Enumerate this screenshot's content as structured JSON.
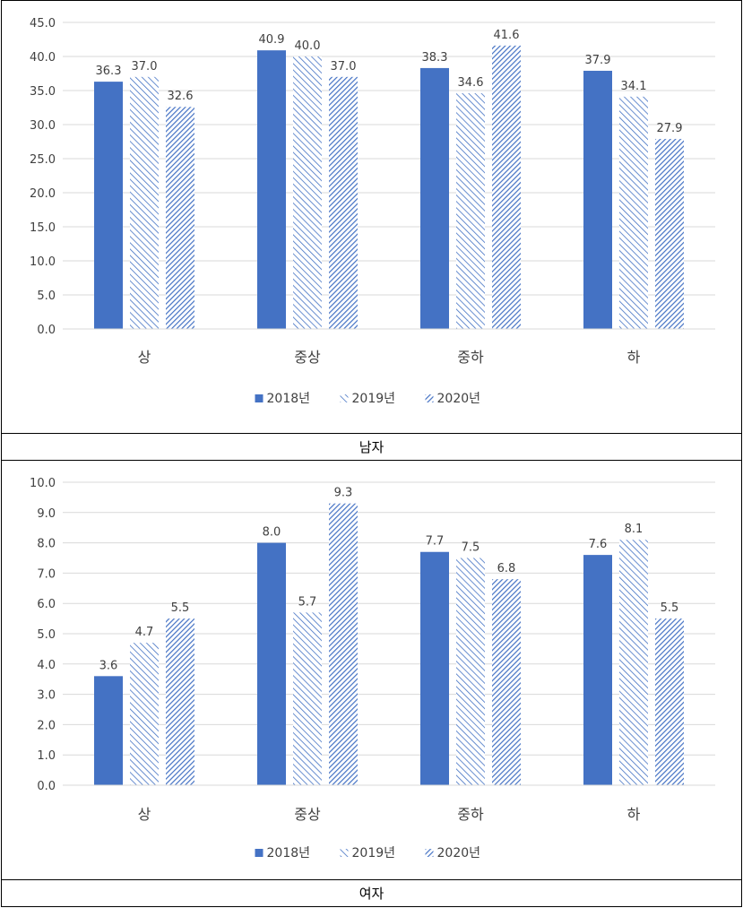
{
  "chart_data": [
    {
      "type": "bar",
      "caption": "남자",
      "categories": [
        "상",
        "중상",
        "중하",
        "하"
      ],
      "series": [
        {
          "name": "2018년",
          "values": [
            36.3,
            40.9,
            38.3,
            37.9
          ],
          "color": "#4472C4",
          "pattern": "solid"
        },
        {
          "name": "2019년",
          "values": [
            37.0,
            40.0,
            34.6,
            34.1
          ],
          "color": "#4472C4",
          "pattern": "light-diagonal"
        },
        {
          "name": "2020년",
          "values": [
            32.6,
            37.0,
            41.6,
            27.9
          ],
          "color": "#4472C4",
          "pattern": "dense-diagonal"
        }
      ],
      "ylim": [
        0,
        45
      ],
      "yticks": [
        "0.0",
        "5.0",
        "10.0",
        "15.0",
        "20.0",
        "25.0",
        "30.0",
        "35.0",
        "40.0",
        "45.0"
      ],
      "ystep": 5,
      "grid": true,
      "legend": "bottom",
      "value_labels": true
    },
    {
      "type": "bar",
      "caption": "여자",
      "categories": [
        "상",
        "중상",
        "중하",
        "하"
      ],
      "series": [
        {
          "name": "2018년",
          "values": [
            3.6,
            8.0,
            7.7,
            7.6
          ],
          "color": "#4472C4",
          "pattern": "solid"
        },
        {
          "name": "2019년",
          "values": [
            4.7,
            5.7,
            7.5,
            8.1
          ],
          "color": "#4472C4",
          "pattern": "light-diagonal"
        },
        {
          "name": "2020년",
          "values": [
            5.5,
            9.3,
            6.8,
            5.5
          ],
          "color": "#4472C4",
          "pattern": "dense-diagonal"
        }
      ],
      "ylim": [
        0,
        10
      ],
      "yticks": [
        "0.0",
        "1.0",
        "2.0",
        "3.0",
        "4.0",
        "5.0",
        "6.0",
        "7.0",
        "8.0",
        "9.0",
        "10.0"
      ],
      "ystep": 1,
      "grid": true,
      "legend": "bottom",
      "value_labels": true
    }
  ]
}
